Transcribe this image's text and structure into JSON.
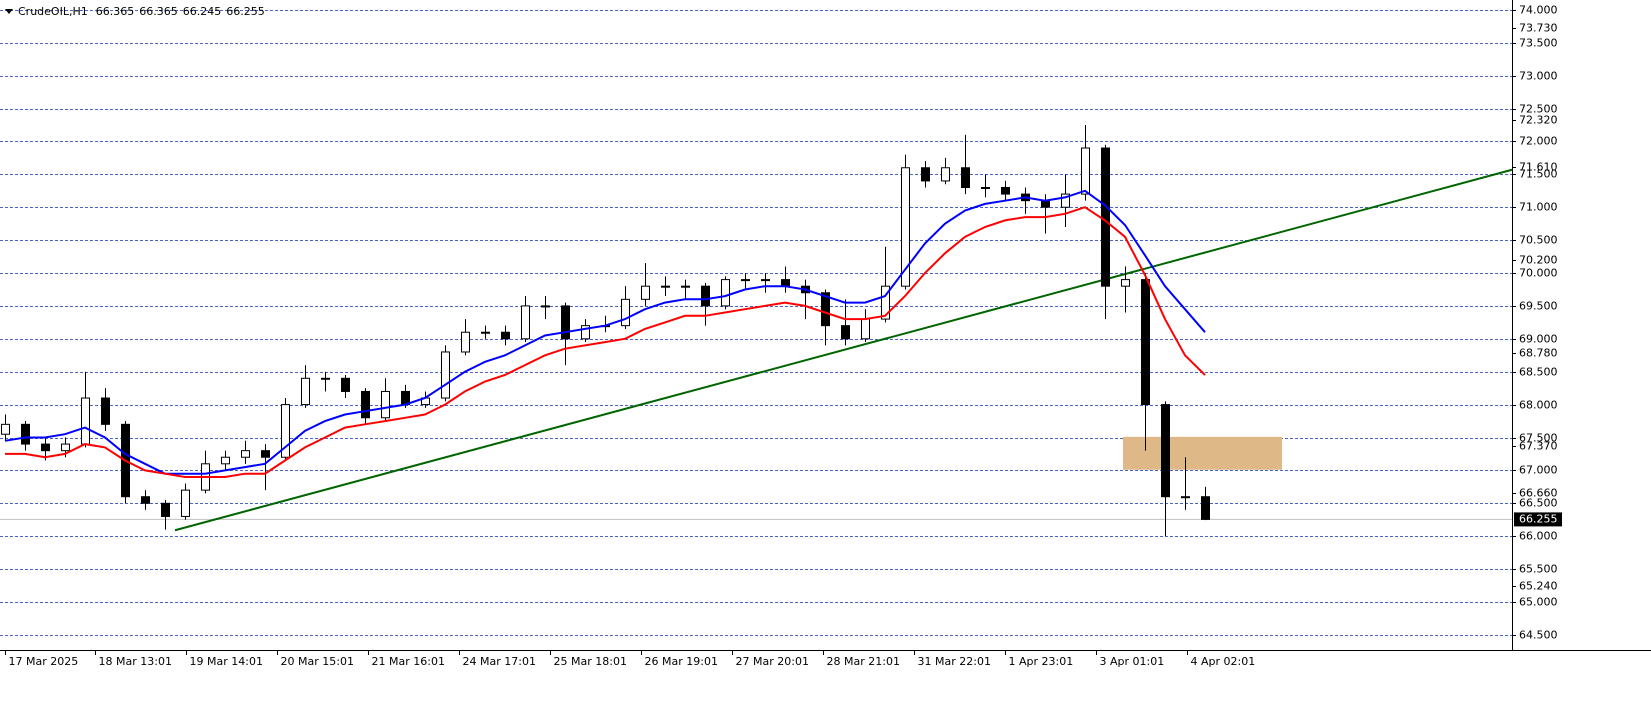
{
  "chart_data": {
    "type": "candlestick",
    "title": "CrudeOIL,H1",
    "header_values": [
      66.365,
      66.365,
      66.245,
      66.255
    ],
    "current_price": 66.255,
    "xlim": [
      -0.25,
      75.35
    ],
    "ylim": [
      64.27,
      74.15
    ],
    "grid": true,
    "xticks": [
      {
        "value": 0,
        "label": "17 Mar 2025"
      },
      {
        "value": 4.5,
        "label": "18 Mar 13:01"
      },
      {
        "value": 9.05,
        "label": "19 Mar 14:01"
      },
      {
        "value": 13.6,
        "label": "20 Mar 15:01"
      },
      {
        "value": 18.15,
        "label": "21 Mar 16:01"
      },
      {
        "value": 22.7,
        "label": "24 Mar 17:01"
      },
      {
        "value": 27.25,
        "label": "25 Mar 18:01"
      },
      {
        "value": 31.8,
        "label": "26 Mar 19:01"
      },
      {
        "value": 36.35,
        "label": "27 Mar 20:01"
      },
      {
        "value": 40.9,
        "label": "28 Mar 21:01"
      },
      {
        "value": 45.45,
        "label": "31 Mar 22:01"
      },
      {
        "value": 50,
        "label": "1 Apr 23:01"
      },
      {
        "value": 54.55,
        "label": "3 Apr 01:01"
      },
      {
        "value": 59.1,
        "label": "4 Apr 02:01"
      }
    ],
    "yticks": [
      {
        "value": 74,
        "label": "74.000"
      },
      {
        "value": 73.5,
        "label": "73.500"
      },
      {
        "value": 73,
        "label": "73.000"
      },
      {
        "value": 72.5,
        "label": "72.500"
      },
      {
        "value": 72,
        "label": "72.000"
      },
      {
        "value": 71.5,
        "label": "71.500"
      },
      {
        "value": 71,
        "label": "71.000"
      },
      {
        "value": 70.5,
        "label": "70.500"
      },
      {
        "value": 70,
        "label": "70.000"
      },
      {
        "value": 69.5,
        "label": "69.500"
      },
      {
        "value": 69,
        "label": "69.000"
      },
      {
        "value": 68.5,
        "label": "68.500"
      },
      {
        "value": 68,
        "label": "68.000"
      },
      {
        "value": 67.5,
        "label": "67.500"
      },
      {
        "value": 67,
        "label": "67.000"
      },
      {
        "value": 66.5,
        "label": "66.500"
      },
      {
        "value": 66,
        "label": "66.000"
      },
      {
        "value": 65.5,
        "label": "65.500"
      },
      {
        "value": 65,
        "label": "65.000"
      },
      {
        "value": 64.5,
        "label": "64.500"
      }
    ],
    "extra_price_labels": [
      {
        "value": 73.73,
        "label": "73.730"
      },
      {
        "value": 72.32,
        "label": "72.320"
      },
      {
        "value": 71.61,
        "label": "71.610"
      },
      {
        "value": 70.2,
        "label": "70.200"
      },
      {
        "value": 68.78,
        "label": "68.780"
      },
      {
        "value": 67.37,
        "label": "67.370"
      },
      {
        "value": 66.66,
        "label": "66.660"
      },
      {
        "value": 65.24,
        "label": "65.240"
      }
    ],
    "open": [
      67.55,
      67.7,
      67.4,
      67.3,
      67.4,
      68.1,
      67.7,
      66.6,
      66.5,
      66.3,
      66.7,
      67.1,
      67.2,
      67.3,
      67.2,
      68.0,
      68.4,
      68.4,
      68.2,
      67.8,
      68.2,
      68.0,
      68.1,
      68.8,
      69.1,
      69.1,
      69.0,
      69.5,
      69.5,
      69.0,
      69.2,
      69.2,
      69.6,
      69.8,
      69.8,
      69.8,
      69.5,
      69.9,
      69.9,
      69.9,
      69.8,
      69.7,
      69.2,
      69.0,
      69.3,
      69.8,
      71.6,
      71.4,
      71.6,
      71.3,
      71.3,
      71.2,
      71.1,
      71.0,
      71.2,
      71.9,
      69.8,
      69.9,
      68.0,
      66.6,
      66.6
    ],
    "high": [
      67.85,
      67.75,
      67.5,
      67.5,
      68.5,
      68.25,
      67.75,
      66.7,
      66.55,
      66.8,
      67.3,
      67.3,
      67.45,
      67.4,
      68.1,
      68.6,
      68.5,
      68.45,
      68.25,
      68.4,
      68.3,
      68.2,
      68.9,
      69.3,
      69.2,
      69.2,
      69.65,
      69.65,
      69.55,
      69.3,
      69.35,
      69.8,
      70.15,
      69.95,
      69.9,
      69.85,
      69.95,
      70.0,
      70.0,
      70.1,
      69.9,
      69.75,
      69.6,
      69.45,
      70.4,
      71.8,
      71.7,
      71.75,
      72.1,
      71.5,
      71.4,
      71.3,
      71.2,
      71.5,
      72.25,
      71.95,
      70.1,
      70.0,
      68.05,
      67.2,
      66.75
    ],
    "low": [
      67.45,
      67.3,
      67.15,
      67.2,
      67.35,
      67.6,
      66.5,
      66.4,
      66.1,
      66.25,
      66.65,
      67.0,
      67.1,
      66.7,
      67.15,
      67.95,
      68.2,
      68.1,
      67.7,
      67.75,
      67.95,
      67.95,
      68.05,
      68.75,
      69.0,
      68.9,
      68.95,
      69.3,
      68.6,
      68.95,
      69.1,
      69.15,
      69.5,
      69.65,
      69.6,
      69.2,
      69.45,
      69.75,
      69.7,
      69.7,
      69.3,
      68.9,
      68.9,
      68.95,
      69.25,
      69.75,
      71.3,
      71.35,
      71.2,
      71.15,
      71.1,
      70.9,
      70.6,
      70.7,
      71.1,
      69.3,
      69.4,
      67.3,
      66.0,
      66.4,
      66.245
    ],
    "close": [
      67.7,
      67.4,
      67.3,
      67.4,
      68.1,
      67.7,
      66.6,
      66.5,
      66.3,
      66.7,
      67.1,
      67.2,
      67.3,
      67.2,
      68.0,
      68.4,
      68.4,
      68.2,
      67.8,
      68.2,
      68.0,
      68.1,
      68.8,
      69.1,
      69.1,
      69.0,
      69.5,
      69.5,
      69.0,
      69.2,
      69.2,
      69.6,
      69.8,
      69.8,
      69.8,
      69.5,
      69.9,
      69.9,
      69.9,
      69.8,
      69.7,
      69.2,
      69.0,
      69.3,
      69.8,
      71.6,
      71.4,
      71.6,
      71.3,
      71.3,
      71.2,
      71.1,
      71.0,
      71.2,
      71.9,
      69.8,
      69.9,
      68.0,
      66.6,
      66.6,
      66.255
    ],
    "moving_averages": [
      {
        "color": "#0000ff",
        "values": [
          67.45,
          67.5,
          67.5,
          67.55,
          67.65,
          67.5,
          67.25,
          67.1,
          66.95,
          66.95,
          66.95,
          67.0,
          67.05,
          67.1,
          67.35,
          67.6,
          67.75,
          67.85,
          67.9,
          67.95,
          68.0,
          68.1,
          68.3,
          68.5,
          68.65,
          68.75,
          68.9,
          69.05,
          69.1,
          69.15,
          69.2,
          69.3,
          69.45,
          69.55,
          69.6,
          69.6,
          69.65,
          69.75,
          69.8,
          69.8,
          69.75,
          69.65,
          69.55,
          69.55,
          69.65,
          70.05,
          70.45,
          70.75,
          70.95,
          71.05,
          71.1,
          71.15,
          71.1,
          71.15,
          71.25,
          71.03,
          70.73,
          70.27,
          69.8,
          69.45,
          69.1
        ]
      },
      {
        "color": "#ff0000",
        "values": [
          67.25,
          67.25,
          67.2,
          67.25,
          67.4,
          67.35,
          67.15,
          67.0,
          66.95,
          66.9,
          66.9,
          66.9,
          66.95,
          66.95,
          67.15,
          67.35,
          67.5,
          67.65,
          67.7,
          67.75,
          67.8,
          67.85,
          68.0,
          68.2,
          68.35,
          68.45,
          68.6,
          68.75,
          68.85,
          68.9,
          68.95,
          69.0,
          69.15,
          69.25,
          69.35,
          69.35,
          69.4,
          69.45,
          69.5,
          69.55,
          69.5,
          69.4,
          69.3,
          69.3,
          69.35,
          69.65,
          70.0,
          70.3,
          70.55,
          70.7,
          70.8,
          70.85,
          70.85,
          70.9,
          71.0,
          70.8,
          70.55,
          69.97,
          69.3,
          68.75,
          68.45
        ]
      }
    ],
    "trendline": {
      "color": "#006400",
      "x": [
        8.5,
        75.35
      ],
      "values": [
        66.09,
        71.57
      ]
    },
    "zone": {
      "color": "#deb887",
      "x": [
        55.9,
        63.85
      ],
      "values": [
        67.01,
        67.51
      ]
    }
  }
}
